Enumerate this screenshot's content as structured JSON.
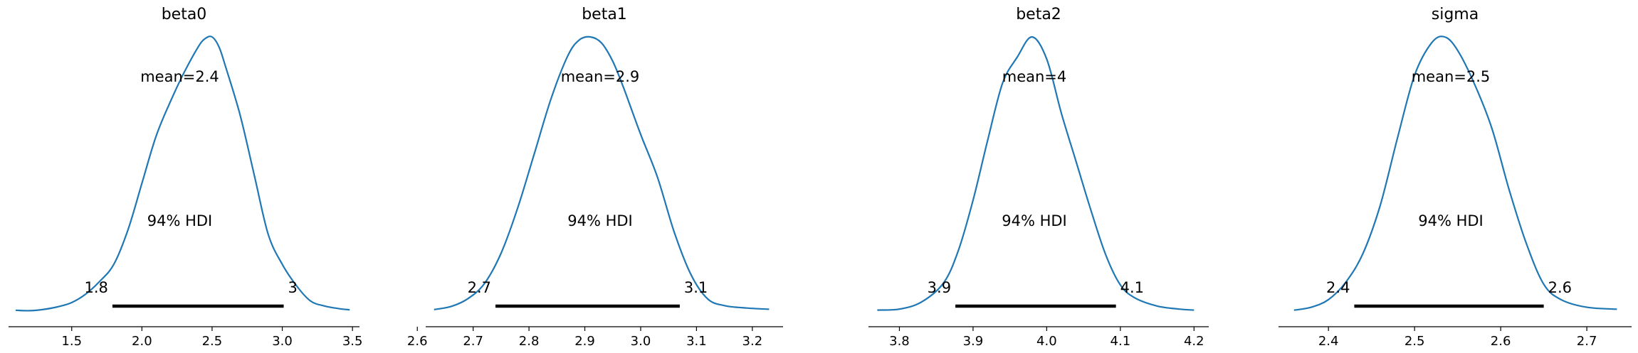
{
  "colors": {
    "kde": "#1f77b4",
    "hdi": "#000000",
    "axis": "#000000"
  },
  "hdi_label": "94% HDI",
  "chart_data": [
    {
      "type": "area",
      "title": "beta0",
      "mean_label": "mean=2.4",
      "hdi": [
        1.79,
        3.01
      ],
      "hdi_labels": [
        "1.8",
        "3"
      ],
      "xlim": [
        1.05,
        3.55
      ],
      "ticks": [
        1.5,
        2.0,
        2.5,
        3.0,
        3.5
      ],
      "tick_labels": [
        "1.5",
        "2.0",
        "2.5",
        "3.0",
        "3.5"
      ],
      "density": {
        "x": [
          1.1,
          1.2,
          1.3,
          1.4,
          1.5,
          1.6,
          1.7,
          1.8,
          1.9,
          2.0,
          2.1,
          2.2,
          2.3,
          2.4,
          2.45,
          2.5,
          2.55,
          2.6,
          2.7,
          2.8,
          2.9,
          3.0,
          3.1,
          3.2,
          3.3,
          3.4,
          3.48
        ],
        "y": [
          0.01,
          0.005,
          0.02,
          0.05,
          0.1,
          0.2,
          0.35,
          0.55,
          0.95,
          1.5,
          2.05,
          2.45,
          2.8,
          3.1,
          3.2,
          3.22,
          3.1,
          2.85,
          2.3,
          1.6,
          0.9,
          0.55,
          0.3,
          0.12,
          0.06,
          0.03,
          0.015
        ]
      }
    },
    {
      "type": "area",
      "title": "beta1",
      "mean_label": "mean=2.9",
      "hdi": [
        2.74,
        3.07
      ],
      "hdi_labels": [
        "2.7",
        "3.1"
      ],
      "xlim": [
        2.615,
        3.255
      ],
      "ticks": [
        2.6,
        2.7,
        2.8,
        2.9,
        3.0,
        3.1,
        3.2
      ],
      "tick_labels": [
        "2.6",
        "2.7",
        "2.8",
        "2.9",
        "3.0",
        "3.1",
        "3.2"
      ],
      "density": {
        "x": [
          2.63,
          2.66,
          2.69,
          2.72,
          2.75,
          2.78,
          2.81,
          2.84,
          2.87,
          2.89,
          2.91,
          2.93,
          2.95,
          2.97,
          3.0,
          3.03,
          3.06,
          3.09,
          3.12,
          3.15,
          3.19,
          3.23
        ],
        "y": [
          0.05,
          0.15,
          0.4,
          0.9,
          1.9,
          3.4,
          5.2,
          7.0,
          8.4,
          8.9,
          9.0,
          8.8,
          8.2,
          7.3,
          5.8,
          4.4,
          2.6,
          1.2,
          0.4,
          0.18,
          0.1,
          0.06
        ]
      }
    },
    {
      "type": "area",
      "title": "beta2",
      "mean_label": "mean=4",
      "hdi": [
        3.876,
        4.094
      ],
      "hdi_labels": [
        "3.9",
        "4.1"
      ],
      "xlim": [
        3.758,
        4.22
      ],
      "ticks": [
        3.8,
        3.9,
        4.0,
        4.1,
        4.2
      ],
      "tick_labels": [
        "3.8",
        "3.9",
        "4.0",
        "4.1",
        "4.2"
      ],
      "density": {
        "x": [
          3.77,
          3.8,
          3.83,
          3.86,
          3.88,
          3.9,
          3.92,
          3.94,
          3.96,
          3.98,
          4.0,
          4.02,
          4.04,
          4.06,
          4.08,
          4.1,
          4.12,
          4.15,
          4.18,
          4.2
        ],
        "y": [
          0.05,
          0.1,
          0.45,
          1.4,
          3.0,
          5.5,
          8.5,
          11.3,
          12.6,
          13.6,
          12.5,
          9.8,
          7.4,
          5.0,
          2.8,
          1.3,
          0.65,
          0.25,
          0.1,
          0.05
        ]
      }
    },
    {
      "type": "area",
      "title": "sigma",
      "mean_label": "mean=2.5",
      "hdi": [
        2.43,
        2.65
      ],
      "hdi_labels": [
        "2.4",
        "2.6"
      ],
      "xlim": [
        2.342,
        2.752
      ],
      "ticks": [
        2.4,
        2.5,
        2.6,
        2.7
      ],
      "tick_labels": [
        "2.4",
        "2.5",
        "2.6",
        "2.7"
      ],
      "density": {
        "x": [
          2.36,
          2.38,
          2.4,
          2.42,
          2.44,
          2.46,
          2.48,
          2.5,
          2.52,
          2.535,
          2.55,
          2.57,
          2.59,
          2.61,
          2.63,
          2.65,
          2.67,
          2.7,
          2.735
        ],
        "y": [
          0.05,
          0.2,
          0.6,
          1.5,
          3.0,
          5.5,
          9.0,
          12.3,
          14.0,
          14.3,
          13.6,
          11.8,
          9.5,
          6.3,
          3.5,
          1.4,
          0.6,
          0.2,
          0.1
        ]
      }
    }
  ]
}
